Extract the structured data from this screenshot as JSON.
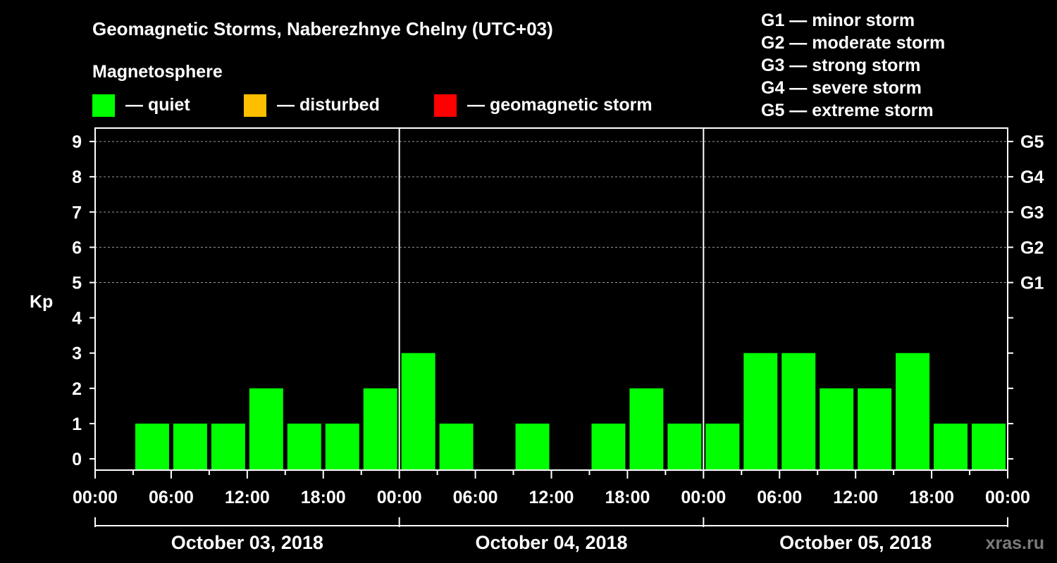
{
  "chart_data": {
    "type": "bar",
    "title": "Geomagnetic Storms, Naberezhnye Chelny (UTC+03)",
    "subtitle": "Magnetosphere",
    "ylabel": "Kp",
    "ylim": [
      -0.3,
      9.6
    ],
    "yticks": [
      "0",
      "1",
      "2",
      "3",
      "4",
      "5",
      "6",
      "7",
      "8",
      "9"
    ],
    "storm_levels": [
      {
        "kp": 5,
        "label": "G1"
      },
      {
        "kp": 6,
        "label": "G2"
      },
      {
        "kp": 7,
        "label": "G3"
      },
      {
        "kp": 8,
        "label": "G4"
      },
      {
        "kp": 9,
        "label": "G5"
      }
    ],
    "legend": [
      {
        "label": "— quiet",
        "color": "#00ff00"
      },
      {
        "label": "— disturbed",
        "color": "#ffbf00"
      },
      {
        "label": "— geomagnetic storm",
        "color": "#ff0000"
      }
    ],
    "storm_scale": [
      "G1 — minor storm",
      "G2 — moderate storm",
      "G3 — strong storm",
      "G4 — severe storm",
      "G5 — extreme storm"
    ],
    "xtick_labels": [
      "00:00",
      "06:00",
      "12:00",
      "18:00",
      "00:00",
      "06:00",
      "12:00",
      "18:00",
      "00:00",
      "06:00",
      "12:00",
      "18:00",
      "00:00"
    ],
    "days": [
      "October 03, 2018",
      "October 04, 2018",
      "October 05, 2018"
    ],
    "interval_hours": 3,
    "values": [
      0,
      1,
      1,
      1,
      2,
      1,
      1,
      2,
      3,
      1,
      0,
      1,
      0,
      1,
      2,
      1,
      1,
      3,
      3,
      2,
      2,
      3,
      1,
      1
    ],
    "colors": {
      "quiet": "#00ff00",
      "disturbed": "#ffbf00",
      "storm": "#ff0000",
      "grid": "#9a9a9a"
    },
    "watermark": "xras.ru"
  }
}
